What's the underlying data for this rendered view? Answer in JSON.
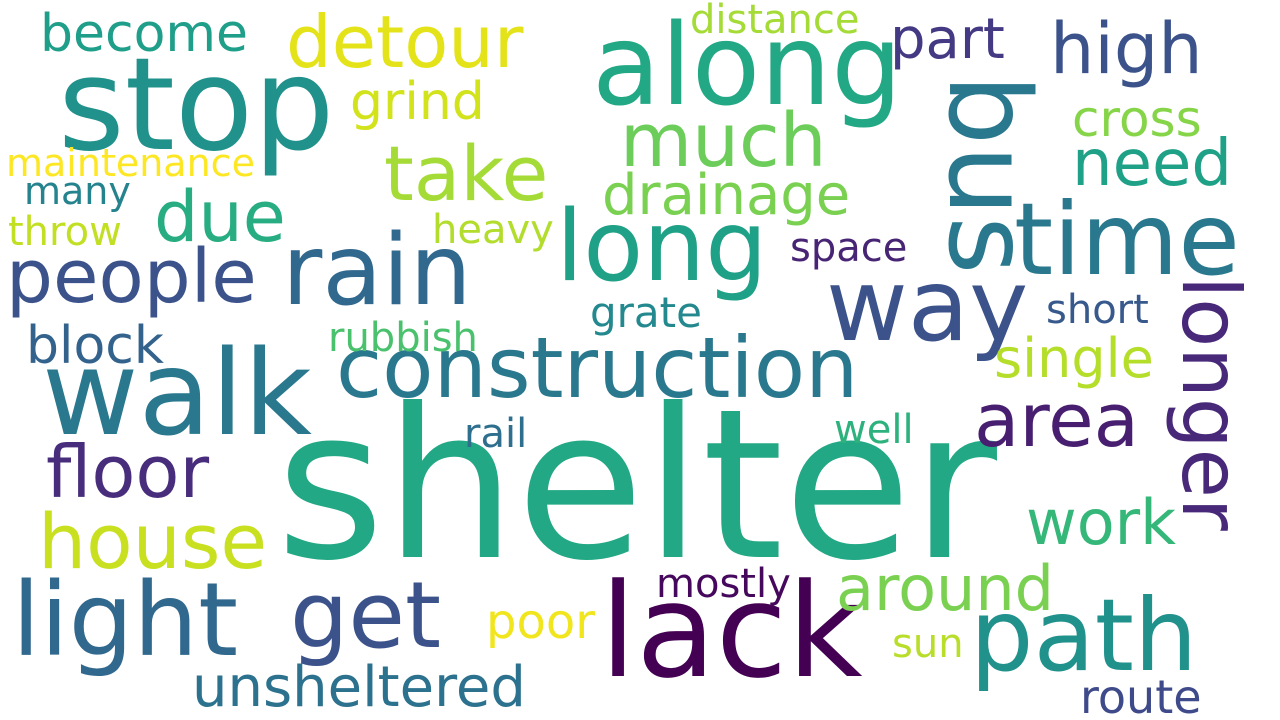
{
  "words": [
    {
      "id": "shelter",
      "text": "shelter",
      "color": "#22a884"
    },
    {
      "id": "stop",
      "text": "stop",
      "color": "#21918c"
    },
    {
      "id": "along",
      "text": "along",
      "color": "#22a884"
    },
    {
      "id": "bus",
      "text": "bus",
      "color": "#2a788e"
    },
    {
      "id": "walk",
      "text": "walk",
      "color": "#2a788e"
    },
    {
      "id": "construction",
      "text": "construction",
      "color": "#2a788e"
    },
    {
      "id": "lack",
      "text": "lack",
      "color": "#440154"
    },
    {
      "id": "path",
      "text": "path",
      "color": "#21918c"
    },
    {
      "id": "light",
      "text": "light",
      "color": "#31688e"
    },
    {
      "id": "get",
      "text": "get",
      "color": "#3b528b"
    },
    {
      "id": "rain",
      "text": "rain",
      "color": "#31688e"
    },
    {
      "id": "long",
      "text": "long",
      "color": "#1fa187"
    },
    {
      "id": "way",
      "text": "way",
      "color": "#3b528b"
    },
    {
      "id": "time",
      "text": "time",
      "color": "#2a788e"
    },
    {
      "id": "longer",
      "text": "longer",
      "color": "#482878"
    },
    {
      "id": "detour",
      "text": "detour",
      "color": "#e4e319"
    },
    {
      "id": "much",
      "text": "much",
      "color": "#6ccd5a"
    },
    {
      "id": "take",
      "text": "take",
      "color": "#a5db36"
    },
    {
      "id": "high",
      "text": "high",
      "color": "#3b528b"
    },
    {
      "id": "people",
      "text": "people",
      "color": "#3b528b"
    },
    {
      "id": "house",
      "text": "house",
      "color": "#c8e020"
    },
    {
      "id": "floor",
      "text": "floor",
      "color": "#472d7b"
    },
    {
      "id": "area",
      "text": "area",
      "color": "#481f70"
    },
    {
      "id": "unsheltered",
      "text": "unsheltered",
      "color": "#2c728e"
    },
    {
      "id": "due",
      "text": "due",
      "color": "#27ad81"
    },
    {
      "id": "need",
      "text": "need",
      "color": "#1fa187"
    },
    {
      "id": "drainage",
      "text": "drainage",
      "color": "#7ad151"
    },
    {
      "id": "around",
      "text": "around",
      "color": "#7ad151"
    },
    {
      "id": "work",
      "text": "work",
      "color": "#35b779"
    },
    {
      "id": "grind",
      "text": "grind",
      "color": "#d2e21b"
    },
    {
      "id": "part",
      "text": "part",
      "color": "#443983"
    },
    {
      "id": "become",
      "text": "become",
      "color": "#1f9e89"
    },
    {
      "id": "cross",
      "text": "cross",
      "color": "#86d549"
    },
    {
      "id": "single",
      "text": "single",
      "color": "#b5de2b"
    },
    {
      "id": "block",
      "text": "block",
      "color": "#33638d"
    },
    {
      "id": "route",
      "text": "route",
      "color": "#3e4a89"
    },
    {
      "id": "mostly",
      "text": "mostly",
      "color": "#46085c"
    },
    {
      "id": "poor",
      "text": "poor",
      "color": "#f1e51d"
    },
    {
      "id": "distance",
      "text": "distance",
      "color": "#a5db36"
    },
    {
      "id": "maintenance",
      "text": "maintenance",
      "color": "#fde725"
    },
    {
      "id": "many",
      "text": "many",
      "color": "#25838e"
    },
    {
      "id": "throw",
      "text": "throw",
      "color": "#c2df23"
    },
    {
      "id": "heavy",
      "text": "heavy",
      "color": "#b2dd2d"
    },
    {
      "id": "space",
      "text": "space",
      "color": "#482475"
    },
    {
      "id": "grate",
      "text": "grate",
      "color": "#23898e"
    },
    {
      "id": "rubbish",
      "text": "rubbish",
      "color": "#4ac16d"
    },
    {
      "id": "short",
      "text": "short",
      "color": "#38598c"
    },
    {
      "id": "rail",
      "text": "rail",
      "color": "#2e6f8e"
    },
    {
      "id": "well",
      "text": "well",
      "color": "#2db27d"
    },
    {
      "id": "sun",
      "text": "sun",
      "color": "#b8de29"
    }
  ]
}
